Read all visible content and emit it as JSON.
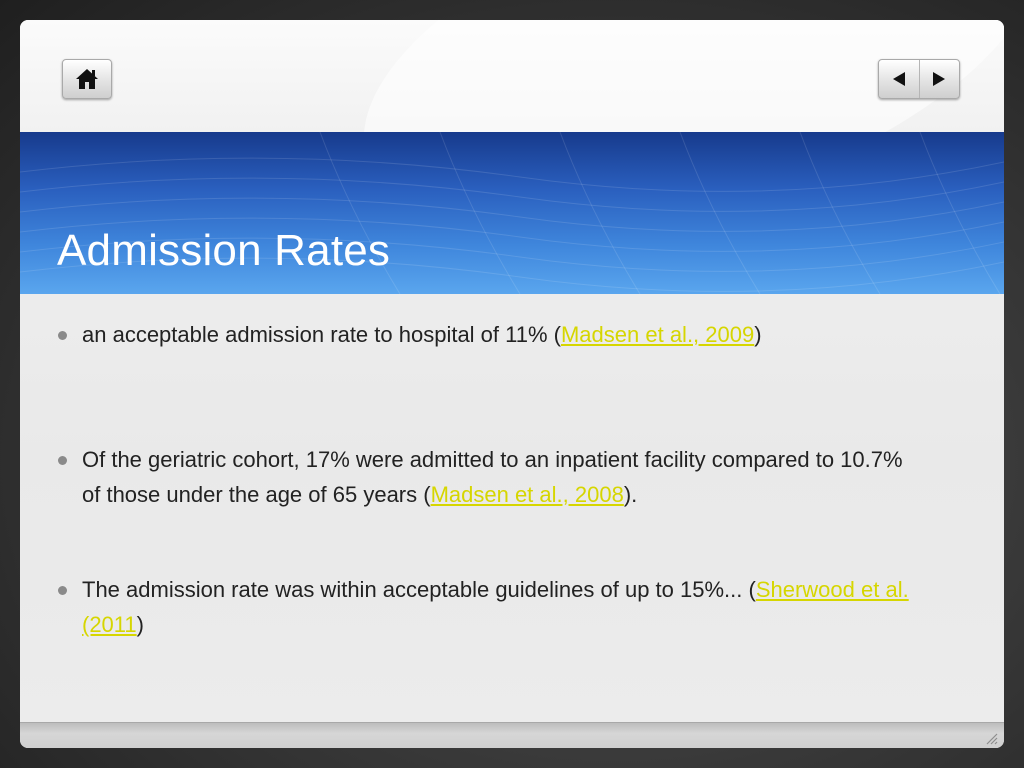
{
  "slide": {
    "title": "Admission Rates",
    "bullets": [
      {
        "pre": "an acceptable admission rate to hospital of 11% (",
        "cite": "Madsen et al., 2009",
        "post": ")"
      },
      {
        "pre": " Of the geriatric cohort, 17% were admitted to an inpatient facility compared to 10.7% of those under the age of 65 years (",
        "cite": "Madsen et al., 2008",
        "post": ")."
      },
      {
        "pre": "The admission rate was within acceptable guidelines of up to 15%... (",
        "cite": "Sherwood et al. (2011",
        "post": ")"
      }
    ]
  },
  "icons": {
    "home": "home-icon",
    "prev": "triangle-left-icon",
    "next": "triangle-right-icon",
    "grip": "resize-grip-icon"
  },
  "colors": {
    "title_band_top": "#173a8c",
    "title_band_bottom": "#5aa6ee",
    "citation_link": "#d6d600",
    "body_text": "#222222"
  }
}
